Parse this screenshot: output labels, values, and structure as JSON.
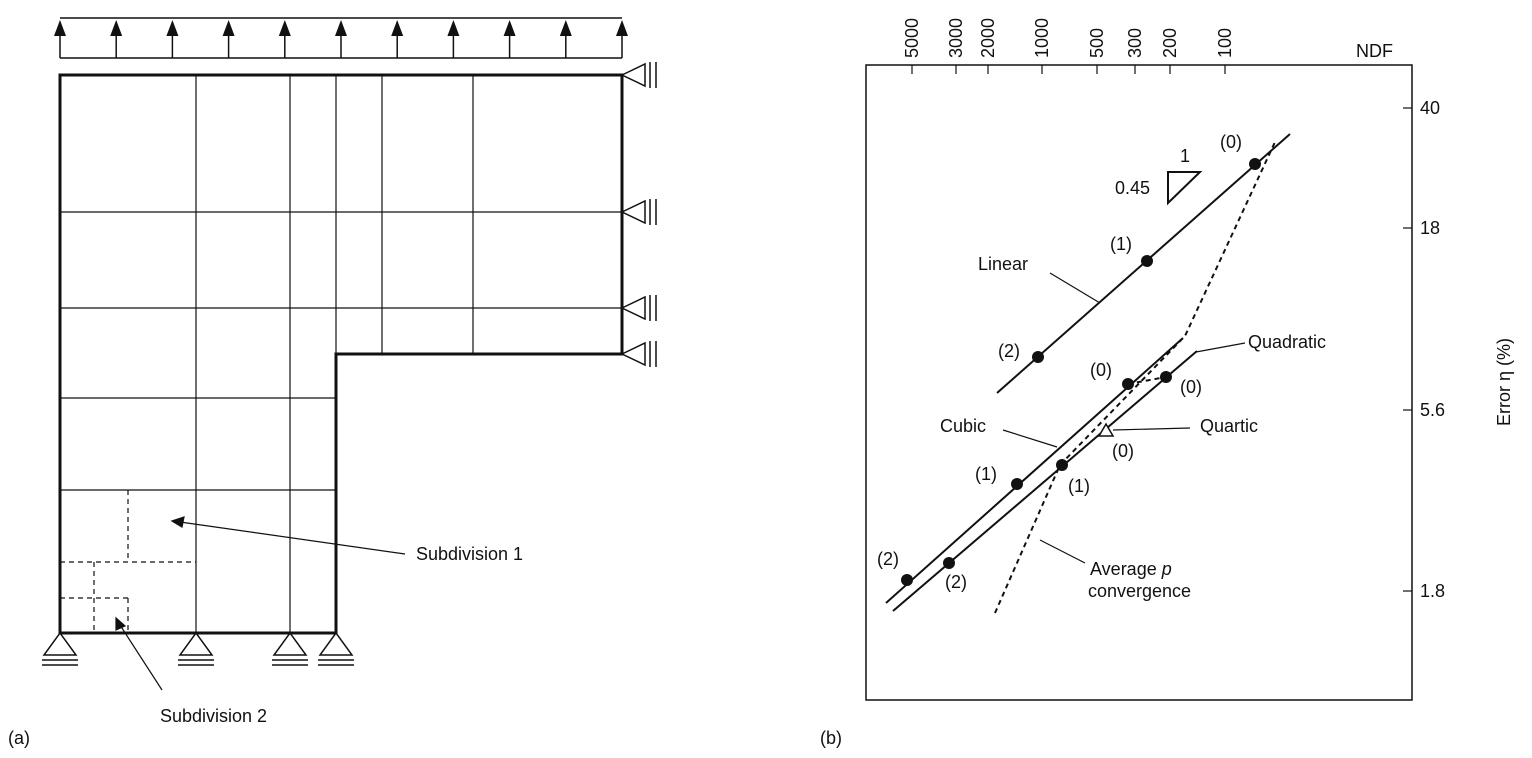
{
  "panel_a": {
    "label": "(a)",
    "subdivision_1_label": "Subdivision 1",
    "subdivision_2_label": "Subdivision 2",
    "load_arrow_count": 11,
    "roller_support_count_right": 4,
    "bottom_support_count": 4
  },
  "panel_b": {
    "label": "(b)",
    "top_axis_label": "NDF",
    "right_axis_label": "Error η (%)",
    "slope_rise": "1",
    "slope_run": "0.45",
    "curve_labels": {
      "linear": "Linear",
      "cubic": "Cubic",
      "quadratic": "Quadratic",
      "quartic": "Quartic",
      "average_line1": "Average ",
      "average_p": "p",
      "average_line2": "convergence"
    },
    "point_labels": [
      "(0)",
      "(1)",
      "(2)"
    ]
  },
  "chart_data": {
    "type": "line",
    "title": "",
    "xlabel": "NDF",
    "ylabel": "Error η (%)",
    "x_scale": "log, reversed",
    "y_scale": "log",
    "x_ticks": [
      5000,
      3000,
      2000,
      1000,
      500,
      300,
      200,
      100
    ],
    "y_ticks": [
      40,
      18,
      5.6,
      1.8
    ],
    "series": [
      {
        "name": "Linear",
        "points": [
          {
            "label": "(0)",
            "x": 75,
            "y": 30
          },
          {
            "label": "(1)",
            "x": 280,
            "y": 15
          },
          {
            "label": "(2)",
            "x": 1000,
            "y": 8.4
          }
        ]
      },
      {
        "name": "Quadratic",
        "points": [
          {
            "label": "(0)",
            "x": 200,
            "y": 7
          }
        ]
      },
      {
        "name": "Cubic",
        "points": [
          {
            "label": "(0)",
            "x": 330,
            "y": 6.8
          },
          {
            "label": "(1)",
            "x": 1300,
            "y": 3.6
          },
          {
            "label": "(2)",
            "x": 5500,
            "y": 1.95
          }
        ]
      },
      {
        "name": "Quartic",
        "points": [
          {
            "label": "(0)",
            "x": 700,
            "y": 4.9
          },
          {
            "label": "(1)",
            "x": 760,
            "y": 3.4
          },
          {
            "label": "(2)",
            "x": 3000,
            "y": 2.1
          }
        ]
      }
    ],
    "slope_annotation": {
      "rise": 1,
      "run": 0.45
    },
    "grid": false
  }
}
